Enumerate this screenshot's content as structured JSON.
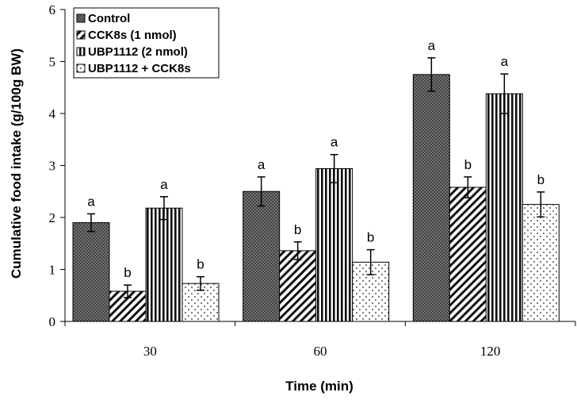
{
  "chart_data": {
    "type": "bar",
    "title": "",
    "xlabel": "Time (min)",
    "ylabel": "Cumulative food intake (g/100g BW)",
    "ylim": [
      0,
      6
    ],
    "yticks": [
      "0",
      "1",
      "2",
      "3",
      "4",
      "5",
      "6"
    ],
    "categories": [
      "30",
      "60",
      "120"
    ],
    "legend_position": "top-left",
    "grid": false,
    "series": [
      {
        "name": "Control",
        "pattern": "dark-crosshatch",
        "values": [
          1.9,
          2.5,
          4.75
        ],
        "errors": [
          0.17,
          0.28,
          0.32
        ],
        "labels": [
          "a",
          "a",
          "a"
        ]
      },
      {
        "name": "CCK8s (1 nmol)",
        "pattern": "diagonal",
        "values": [
          0.58,
          1.36,
          2.58
        ],
        "errors": [
          0.12,
          0.17,
          0.2
        ],
        "labels": [
          "b",
          "b",
          "b"
        ]
      },
      {
        "name": "UBP1112 (2 nmol)",
        "pattern": "vertical",
        "values": [
          2.18,
          2.94,
          4.38
        ],
        "errors": [
          0.22,
          0.27,
          0.38
        ],
        "labels": [
          "a",
          "a",
          "a"
        ]
      },
      {
        "name": "UBP1112 + CCK8s",
        "pattern": "dots",
        "values": [
          0.73,
          1.14,
          2.25
        ],
        "errors": [
          0.13,
          0.24,
          0.24
        ],
        "labels": [
          "b",
          "b",
          "b"
        ]
      }
    ]
  }
}
